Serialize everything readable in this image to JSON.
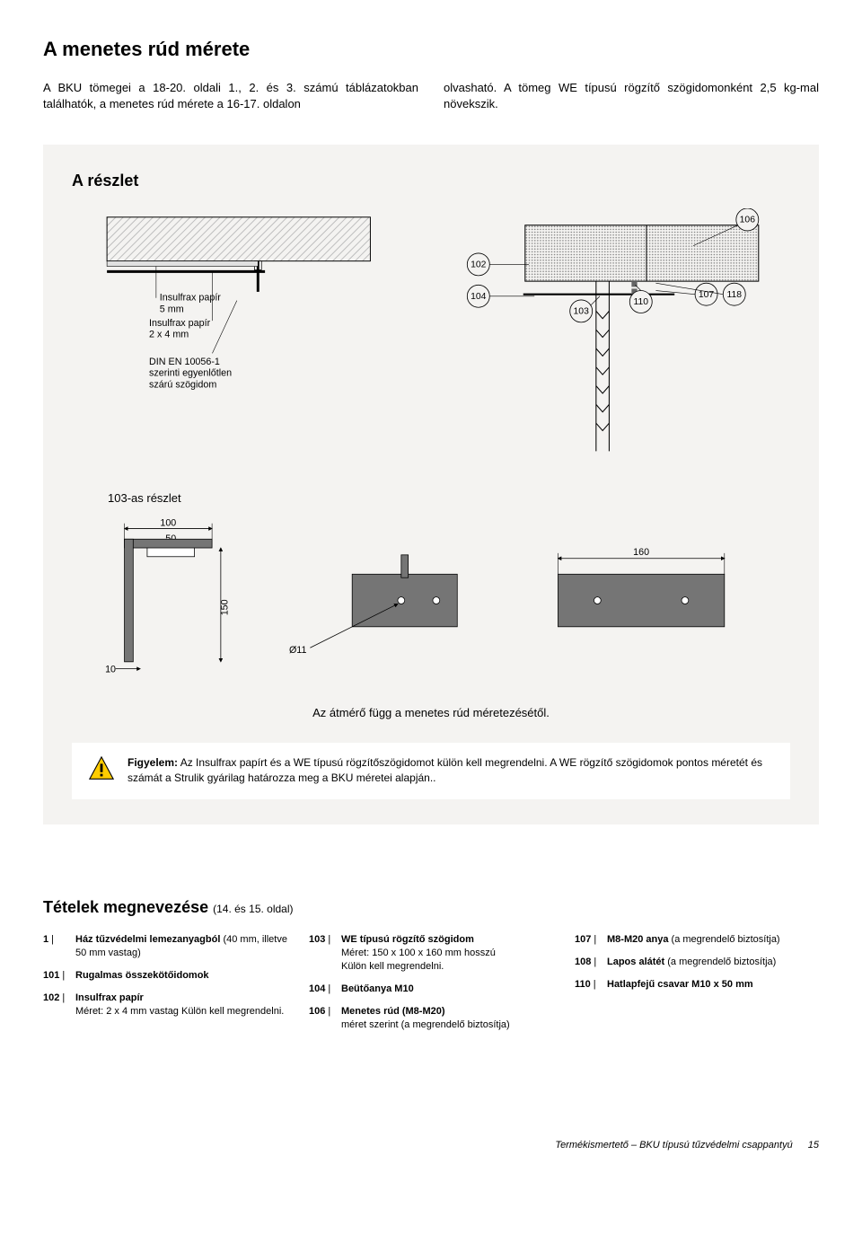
{
  "page": {
    "title": "A menetes rúd mérete",
    "intro_col1": "A BKU tömegei a 18-20. oldali 1., 2. és 3. számú táblázatokban találhatók, a menetes rúd mérete a 16-17. oldalon",
    "intro_col2": "olvasható. A tömeg WE típusú rögzítő szögidomonként 2,5 kg-mal növekszik."
  },
  "sectionA": {
    "title": "A részlet",
    "labels": {
      "insul5": "Insulfrax papír",
      "insul5_dim": "5 mm",
      "insul24": "Insulfrax papír",
      "insul24_dim": "2 x 4 mm",
      "din": "DIN EN 10056-1\nszerinti egyenlőtlen\nszárú szögidom"
    },
    "callouts": {
      "c102": "102",
      "c104": "104",
      "c103": "103",
      "c110": "110",
      "c107": "107",
      "c118": "118",
      "c106": "106"
    },
    "detail103": {
      "title": "103-as részlet",
      "d100": "100",
      "d50": "50",
      "d150": "150",
      "d10": "10",
      "d11": "Ø11",
      "d160": "160",
      "caption": "Az átmérő függ a menetes rúd méretezésétől."
    },
    "diagram_colors": {
      "bg": "#f4f3f1",
      "hatch_gray": "#bdbdbd",
      "wall_gray": "#9e9e9e",
      "part_gray": "#757575",
      "line": "#000000"
    }
  },
  "attention": {
    "heading": "Figyelem:",
    "body": "Az Insulfrax papírt és a WE típusú rögzítőszögidomot külön kell megrendelni. A WE rögzítő szögidomok pontos méretét és számát a Strulik gyárilag határozza meg a BKU méretei alapján.."
  },
  "nomenclature": {
    "title": "Tételek megnevezése",
    "subtitle": "(14. és 15. oldal)",
    "columns": [
      [
        {
          "num": "1",
          "label": "Ház tűzvédelmi lemezanyagból",
          "extra": " (40 mm, illetve 50 mm vastag)"
        },
        {
          "num": "101",
          "label": "Rugalmas összekötőidomok",
          "extra": ""
        },
        {
          "num": "102",
          "label": "Insulfrax papír",
          "extra": "\nMéret: 2 x 4 mm vastag Külön kell megrendelni."
        }
      ],
      [
        {
          "num": "103",
          "label": "WE típusú rögzítő szögidom",
          "extra": "\nMéret: 150 x 100 x 160 mm hosszú\nKülön kell megrendelni."
        },
        {
          "num": "104",
          "label": "Beütőanya M10",
          "extra": ""
        },
        {
          "num": "106",
          "label": "Menetes rúd (M8-M20)",
          "extra": "\nméret szerint (a megrendelő biztosítja)"
        }
      ],
      [
        {
          "num": "107",
          "label": "M8-M20 anya",
          "extra": " (a megrendelő biztosítja)"
        },
        {
          "num": "108",
          "label": "Lapos alátét",
          "extra": " (a megrendelő biztosítja)"
        },
        {
          "num": "110",
          "label": "Hatlapfejű csavar M10 x 50 mm",
          "extra": ""
        }
      ]
    ]
  },
  "footer": {
    "doc_title": "Termékismertető – BKU típusú tűzvédelmi csappantyú",
    "page_num": "15"
  }
}
